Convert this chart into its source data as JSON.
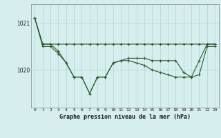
{
  "title": "Graphe pression niveau de la mer (hPa)",
  "background_color": "#d6eeee",
  "line_color": "#2d5a2d",
  "grid_color": "#b0d4d4",
  "yticks": [
    1020,
    1021
  ],
  "ylim": [
    1019.2,
    1021.4
  ],
  "xlim": [
    -0.5,
    23.5
  ],
  "xticks": [
    0,
    1,
    2,
    3,
    4,
    5,
    6,
    7,
    8,
    9,
    10,
    11,
    12,
    13,
    14,
    15,
    16,
    17,
    18,
    19,
    20,
    21,
    22,
    23
  ],
  "series1": [
    1021.1,
    1020.55,
    1020.55,
    1020.55,
    1020.55,
    1020.55,
    1020.55,
    1020.55,
    1020.55,
    1020.55,
    1020.55,
    1020.55,
    1020.55,
    1020.55,
    1020.55,
    1020.55,
    1020.55,
    1020.55,
    1020.55,
    1020.55,
    1020.55,
    1020.55,
    1020.55,
    1020.55
  ],
  "series2": [
    1021.1,
    1020.55,
    1020.55,
    1020.4,
    1020.15,
    1019.85,
    1019.85,
    1019.5,
    1019.85,
    1019.85,
    1020.15,
    1020.2,
    1020.25,
    1020.25,
    1020.25,
    1020.2,
    1020.2,
    1020.2,
    1020.2,
    1019.95,
    1019.85,
    1020.2,
    1020.55,
    1020.55
  ],
  "series3": [
    1021.1,
    1020.5,
    1020.5,
    1020.35,
    1020.15,
    1019.85,
    1019.85,
    1019.5,
    1019.85,
    1019.85,
    1020.15,
    1020.2,
    1020.2,
    1020.15,
    1020.1,
    1020.0,
    1019.95,
    1019.9,
    1019.85,
    1019.85,
    1019.85,
    1019.9,
    1020.5,
    1020.5
  ]
}
